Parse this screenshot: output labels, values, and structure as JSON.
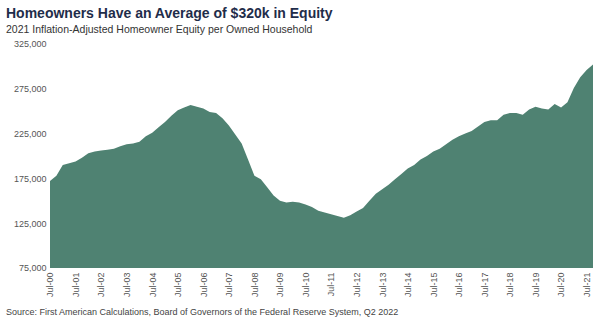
{
  "chart_data": {
    "type": "area",
    "title": "Homeowners Have an Average of $320k in Equity",
    "subtitle": "2021 Inflation-Adjusted Homeowner Equity per Owned Household",
    "source": "Source: First American Calculations, Board of Governors of the Federal Reserve System, Q2 2022",
    "categories": [
      "Jul-00",
      null,
      null,
      null,
      "Jul-01",
      null,
      null,
      null,
      "Jul-02",
      null,
      null,
      null,
      "Jul-03",
      null,
      null,
      null,
      "Jul-04",
      null,
      null,
      null,
      "Jul-05",
      null,
      null,
      null,
      "Jul-06",
      null,
      null,
      null,
      "Jul-07",
      null,
      null,
      null,
      "Jul-08",
      null,
      null,
      null,
      "Jul-09",
      null,
      null,
      null,
      "Jul-10",
      null,
      null,
      null,
      "Jul-11",
      null,
      null,
      null,
      "Jul-12",
      null,
      null,
      null,
      "Jul-13",
      null,
      null,
      null,
      "Jul-14",
      null,
      null,
      null,
      "Jul-15",
      null,
      null,
      null,
      "Jul-16",
      null,
      null,
      null,
      "Jul-17",
      null,
      null,
      null,
      "Jul-18",
      null,
      null,
      null,
      "Jul-19",
      null,
      null,
      null,
      "Jul-20",
      null,
      null,
      null,
      "Jul-21",
      null
    ],
    "values": [
      172000,
      178000,
      190000,
      192000,
      194000,
      198000,
      203000,
      205000,
      206000,
      207000,
      208000,
      211000,
      213000,
      214000,
      216000,
      222000,
      226000,
      232000,
      238000,
      245000,
      251000,
      254000,
      257000,
      255000,
      253000,
      249000,
      248000,
      242000,
      234000,
      224000,
      214000,
      196000,
      178000,
      174000,
      165000,
      156000,
      150000,
      148000,
      149000,
      148000,
      146000,
      143000,
      139000,
      137000,
      135000,
      133000,
      131000,
      134000,
      138000,
      142000,
      150000,
      158000,
      163000,
      168000,
      174000,
      180000,
      186000,
      190000,
      196000,
      200000,
      205000,
      208000,
      213000,
      218000,
      222000,
      225000,
      228000,
      233000,
      238000,
      240000,
      240000,
      246000,
      248000,
      248000,
      246000,
      252000,
      255000,
      253000,
      252000,
      258000,
      254000,
      260000,
      276000,
      288000,
      296000,
      302000
    ],
    "color": "#4f8272",
    "ylim": [
      75000,
      325000
    ],
    "yticks": [
      {
        "value": 75000,
        "label": "75,000"
      },
      {
        "value": 125000,
        "label": "125,000"
      },
      {
        "value": 175000,
        "label": "175,000"
      },
      {
        "value": 225000,
        "label": "225,000"
      },
      {
        "value": 275000,
        "label": "275,000"
      },
      {
        "value": 325000,
        "label": "325,000"
      }
    ],
    "grid": false
  }
}
